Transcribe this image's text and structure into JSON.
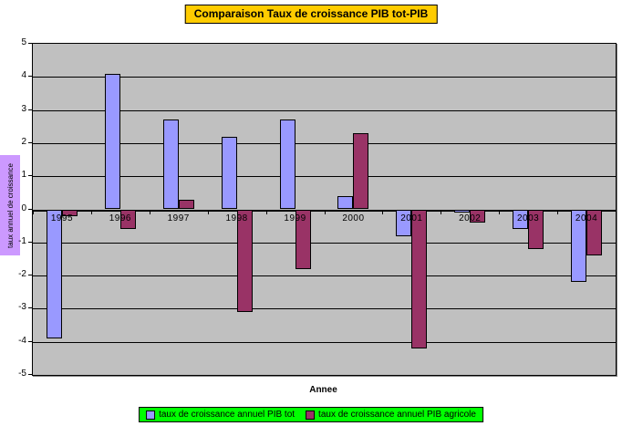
{
  "chart_data": {
    "type": "bar",
    "title": "Comparaison Taux de croissance PIB tot-PIB",
    "categories": [
      "1995",
      "1996",
      "1997",
      "1998",
      "1999",
      "2000",
      "2001",
      "2002",
      "2003",
      "2004"
    ],
    "series": [
      {
        "name": "taux de croissance annuel PIB tot",
        "color": "#9999FF",
        "values": [
          -3.9,
          4.1,
          2.7,
          2.2,
          2.7,
          0.4,
          -0.8,
          -0.1,
          -0.6,
          -2.2
        ]
      },
      {
        "name": "taux de croissance annuel PIB agricole",
        "color": "#993366",
        "values": [
          -0.2,
          -0.6,
          0.3,
          -3.1,
          -1.8,
          2.3,
          -4.2,
          -0.4,
          -1.2,
          -1.4
        ]
      }
    ],
    "xlabel": "Annee",
    "ylabel": "taux annuel de croissance",
    "ylim": [
      -5,
      5
    ],
    "ytick_step": 1,
    "yticks": [
      5,
      4,
      3,
      2,
      1,
      0,
      -1,
      -2,
      -3,
      -4,
      -5
    ],
    "grid": true,
    "legend_position": "bottom",
    "colors": {
      "title_bg": "#FFCC00",
      "legend_bg": "#00FF00",
      "ylabel_bg": "#CC99FF",
      "plot_bg": "#C0C0C0",
      "axis": "#000000",
      "background": "#FFFFFF"
    }
  }
}
